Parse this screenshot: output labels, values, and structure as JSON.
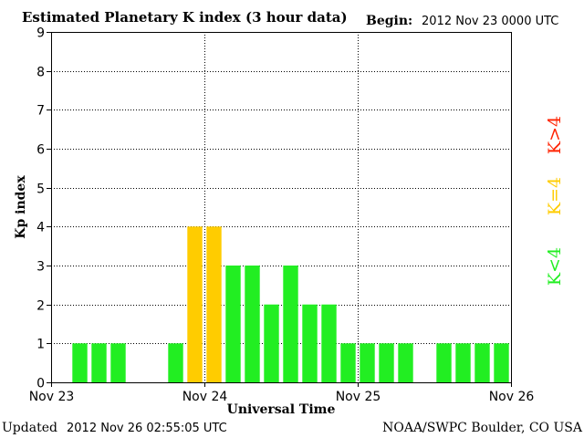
{
  "chart_data": {
    "type": "bar",
    "title": "Estimated Planetary K index (3 hour data)",
    "begin_label": "Begin:",
    "begin_value": "2012 Nov 23 0000 UTC",
    "ylabel": "Kp index",
    "xlabel": "Universal Time",
    "ylim": [
      0,
      9
    ],
    "yticks": [
      "0",
      "1",
      "2",
      "3",
      "4",
      "5",
      "6",
      "7",
      "8",
      "9"
    ],
    "xticks": [
      "Nov 23",
      "Nov 24",
      "Nov 25",
      "Nov 26"
    ],
    "grid": true,
    "bars_per_day": 8,
    "values": [
      0,
      1,
      1,
      1,
      0,
      0,
      1,
      4,
      4,
      3,
      3,
      2,
      3,
      2,
      2,
      1,
      1,
      1,
      1,
      0,
      1,
      1,
      1,
      1
    ],
    "legend": [
      {
        "label": "K<4",
        "color": "#22ee22"
      },
      {
        "label": "K=4",
        "color": "#ffcc00"
      },
      {
        "label": "K>4",
        "color": "#ff2200"
      }
    ],
    "bar_colors": {
      "low": "#22ee22",
      "equal": "#ffcc00",
      "high": "#ff2200"
    }
  },
  "footer": {
    "updated_label": "Updated",
    "updated_value": "2012 Nov 26 02:55:05 UTC",
    "source": "NOAA/SWPC Boulder, CO USA"
  }
}
